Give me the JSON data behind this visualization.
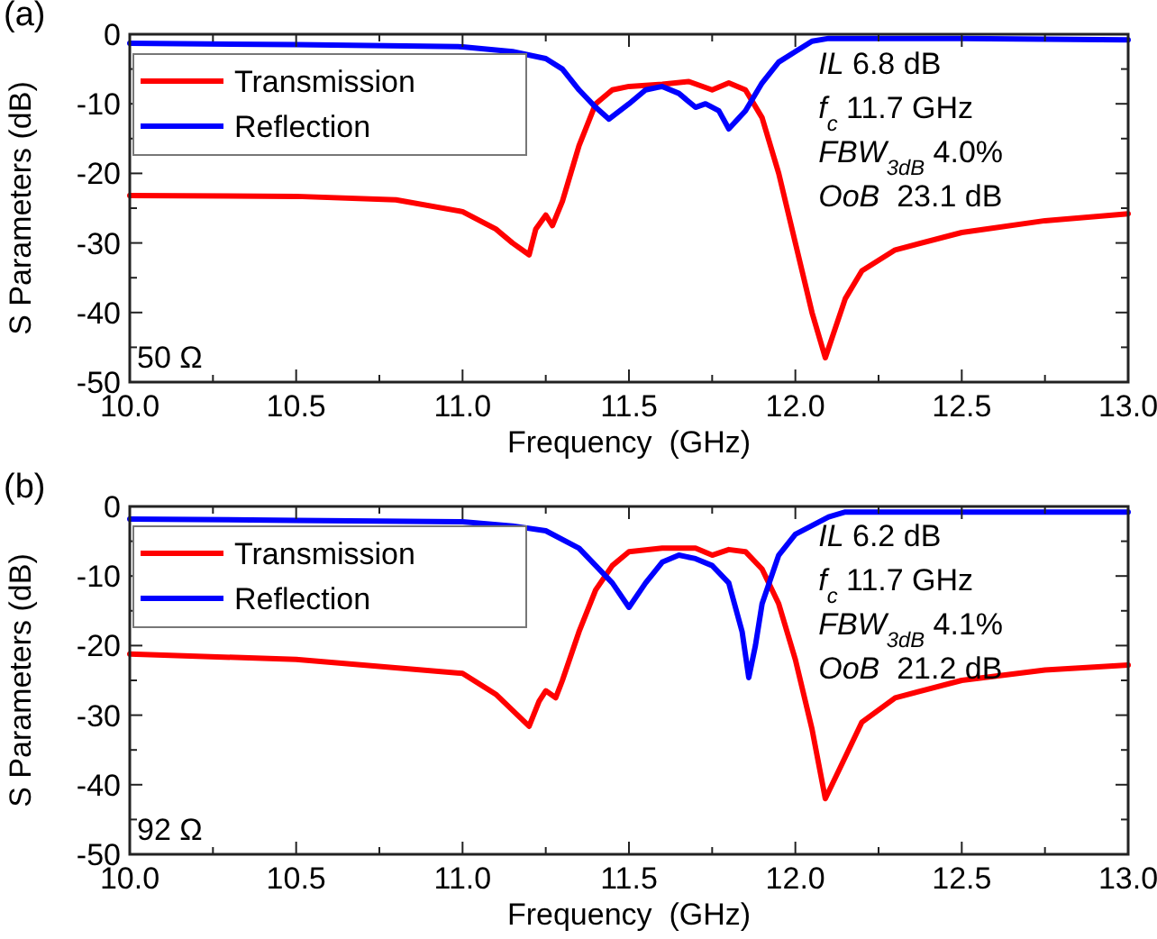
{
  "chart_data": [
    {
      "type": "line",
      "title": "(a)",
      "xlabel": "Frequency  (GHz)",
      "ylabel": "S Parameters (dB)",
      "xlim": [
        10,
        13
      ],
      "xticks": [
        {
          "value": 10,
          "label": "10.0"
        },
        {
          "value": 10.25,
          "label": null
        },
        {
          "value": 10.5,
          "label": "10.5"
        },
        {
          "value": 10.75,
          "label": null
        },
        {
          "value": 11,
          "label": "11.0"
        },
        {
          "value": 11.25,
          "label": null
        },
        {
          "value": 11.5,
          "label": "11.5"
        },
        {
          "value": 11.75,
          "label": null
        },
        {
          "value": 12,
          "label": "12.0"
        },
        {
          "value": 12.25,
          "label": null
        },
        {
          "value": 12.5,
          "label": "12.5"
        },
        {
          "value": 12.75,
          "label": null
        },
        {
          "value": 13,
          "label": "13.0"
        }
      ],
      "ylim": [
        -50,
        0
      ],
      "yticks": [
        -50,
        {
          "value": -45,
          "label": null
        },
        -40,
        {
          "value": -35,
          "label": null
        },
        -30,
        {
          "value": -25,
          "label": null
        },
        -20,
        {
          "value": -15,
          "label": null
        },
        -10,
        {
          "value": -5,
          "label": null
        },
        0
      ],
      "grid": false,
      "legend": "top left",
      "line_style": "solid",
      "annotations": [
        "50 Ω",
        "IL 6.8 dB",
        "f$_{c}$ 11.7 GHz",
        "FBW$_{3dB}$ 4.0%",
        "OoB  23.1 dB"
      ],
      "series": [
        {
          "name": "Transmission",
          "color": "#ff0000",
          "x": [
            10,
            10.5,
            10.8,
            11,
            11.1,
            11.15,
            11.2,
            11.22,
            11.25,
            11.27,
            11.3,
            11.35,
            11.4,
            11.45,
            11.5,
            11.6,
            11.68,
            11.75,
            11.8,
            11.85,
            11.9,
            11.95,
            12,
            12.05,
            12.09,
            12.15,
            12.2,
            12.3,
            12.5,
            12.75,
            13
          ],
          "values": [
            -23.2,
            -23.3,
            -23.8,
            -25.5,
            -28,
            -30,
            -31.7,
            -28,
            -26,
            -27.5,
            -24,
            -16,
            -10,
            -8,
            -7.5,
            -7.2,
            -6.8,
            -8,
            -7,
            -8,
            -12,
            -20,
            -30,
            -40,
            -46.5,
            -38,
            -34,
            -31,
            -28.5,
            -26.8,
            -25.8
          ]
        },
        {
          "name": "Reflection",
          "color": "#0000ff",
          "x": [
            10,
            10.5,
            11,
            11.15,
            11.25,
            11.3,
            11.35,
            11.4,
            11.44,
            11.5,
            11.55,
            11.6,
            11.65,
            11.7,
            11.73,
            11.77,
            11.8,
            11.85,
            11.9,
            11.95,
            12,
            12.05,
            12.1,
            12.5,
            13
          ],
          "values": [
            -1.3,
            -1.5,
            -1.8,
            -2.5,
            -3.5,
            -5,
            -8,
            -10.5,
            -12.2,
            -10,
            -8,
            -7.5,
            -8.5,
            -10.5,
            -10,
            -11,
            -13.6,
            -11,
            -7,
            -4,
            -2.5,
            -1,
            -0.6,
            -0.6,
            -0.8
          ]
        }
      ]
    },
    {
      "type": "line",
      "title": "(b)",
      "xlabel": "Frequency  (GHz)",
      "ylabel": "S Parameters (dB)",
      "xlim": [
        10,
        13
      ],
      "xticks": [
        {
          "value": 10,
          "label": "10.0"
        },
        {
          "value": 10.25,
          "label": null
        },
        {
          "value": 10.5,
          "label": "10.5"
        },
        {
          "value": 10.75,
          "label": null
        },
        {
          "value": 11,
          "label": "11.0"
        },
        {
          "value": 11.25,
          "label": null
        },
        {
          "value": 11.5,
          "label": "11.5"
        },
        {
          "value": 11.75,
          "label": null
        },
        {
          "value": 12,
          "label": "12.0"
        },
        {
          "value": 12.25,
          "label": null
        },
        {
          "value": 12.5,
          "label": "12.5"
        },
        {
          "value": 12.75,
          "label": null
        },
        {
          "value": 13,
          "label": "13.0"
        }
      ],
      "ylim": [
        -50,
        0
      ],
      "yticks": [
        -50,
        {
          "value": -45,
          "label": null
        },
        -40,
        {
          "value": -35,
          "label": null
        },
        -30,
        {
          "value": -25,
          "label": null
        },
        -20,
        {
          "value": -15,
          "label": null
        },
        -10,
        {
          "value": -5,
          "label": null
        },
        0
      ],
      "grid": false,
      "legend": "top left",
      "line_style": "solid",
      "annotations": [
        "92 Ω",
        "IL 6.2 dB",
        "f$_{c}$ 11.7 GHz",
        "FBW$_{3dB}$ 4.1%",
        "OoB  21.2 dB"
      ],
      "series": [
        {
          "name": "Transmission",
          "color": "#ff0000",
          "x": [
            10,
            10.5,
            11,
            11.1,
            11.2,
            11.23,
            11.25,
            11.28,
            11.3,
            11.35,
            11.4,
            11.45,
            11.5,
            11.6,
            11.7,
            11.75,
            11.8,
            11.85,
            11.9,
            11.95,
            12,
            12.05,
            12.09,
            12.15,
            12.2,
            12.3,
            12.5,
            12.75,
            13
          ],
          "values": [
            -21.2,
            -22,
            -24,
            -27,
            -31.6,
            -28,
            -26.5,
            -27.5,
            -25,
            -18,
            -12,
            -8.5,
            -6.5,
            -6,
            -6,
            -7,
            -6.2,
            -6.5,
            -9,
            -14,
            -22,
            -32,
            -42,
            -36,
            -31,
            -27.5,
            -25,
            -23.5,
            -22.8
          ]
        },
        {
          "name": "Reflection",
          "color": "#0000ff",
          "x": [
            10,
            10.5,
            11,
            11.15,
            11.25,
            11.35,
            11.45,
            11.5,
            11.55,
            11.6,
            11.65,
            11.7,
            11.75,
            11.8,
            11.84,
            11.86,
            11.88,
            11.9,
            11.95,
            12,
            12.1,
            12.15,
            13
          ],
          "values": [
            -1.8,
            -2,
            -2.2,
            -2.8,
            -3.5,
            -6,
            -11,
            -14.5,
            -11,
            -8,
            -7,
            -7.5,
            -8.5,
            -11,
            -18,
            -24.6,
            -20,
            -14,
            -7,
            -4,
            -1.5,
            -0.8,
            -0.8
          ]
        }
      ]
    }
  ]
}
